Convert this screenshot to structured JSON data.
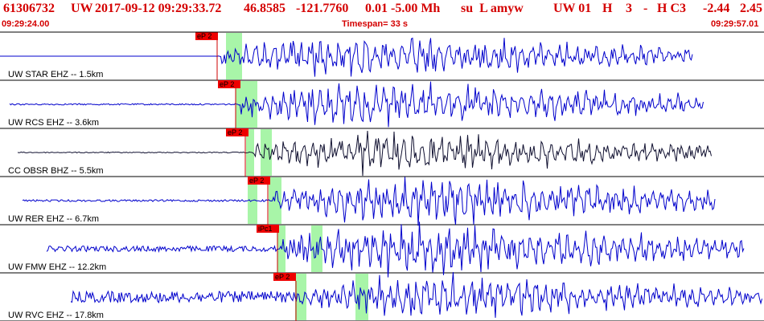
{
  "header": {
    "event_id": "61306732",
    "network": "UW",
    "datetime": "2017-09-12 09:29:33.72",
    "lat": "46.8585",
    "lon": "-121.7760",
    "mag_info": "0.01 -5.00 Mh",
    "flags": "su  L amyw",
    "net_code": "UW 01",
    "h1": "H",
    "num": "3",
    "dash": "-",
    "hc": "H C3",
    "v1": "-2.44",
    "v2": "2.45"
  },
  "subline": {
    "start_time": "09:29:24.00",
    "timespan": "Timespan=  33 s",
    "end_time": "09:29:57.01"
  },
  "colors": {
    "header_text": "#d40000",
    "trace_blue": "#0000cc",
    "trace_dark": "#101030",
    "pick_box": "#ee0000",
    "pick_line": "#cc0000",
    "highlight": "#a8f5a8",
    "separator": "#000000"
  },
  "channels": [
    {
      "label": "UW STAR EHZ -- 1.5km",
      "pick": "eP 2",
      "color": "blue"
    },
    {
      "label": "UW RCS EHZ -- 3.6km",
      "pick": "eP 2",
      "color": "blue"
    },
    {
      "label": "CC OBSR BHZ -- 5.5km",
      "pick": "eP 2",
      "color": "dark"
    },
    {
      "label": "UW RER EHZ -- 6.7km",
      "pick": "eP 2",
      "color": "blue"
    },
    {
      "label": "UW FMW EHZ -- 12.2km",
      "pick": "iPc1",
      "color": "blue"
    },
    {
      "label": "UW RVC EHZ -- 17.8km",
      "pick": "eP 2",
      "color": "blue"
    }
  ]
}
